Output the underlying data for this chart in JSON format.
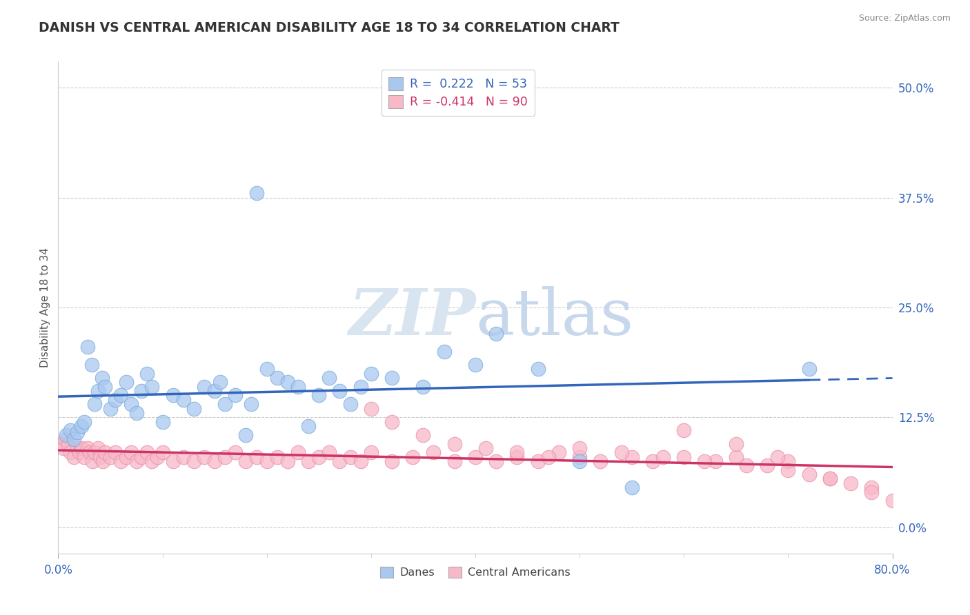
{
  "title": "DANISH VS CENTRAL AMERICAN DISABILITY AGE 18 TO 34 CORRELATION CHART",
  "source": "Source: ZipAtlas.com",
  "ylabel": "Disability Age 18 to 34",
  "ytick_values": [
    0.0,
    12.5,
    25.0,
    37.5,
    50.0
  ],
  "xlim": [
    0.0,
    80.0
  ],
  "ylim": [
    -3.0,
    53.0
  ],
  "blue_face_color": "#a8c8f0",
  "blue_edge_color": "#7aaad8",
  "pink_face_color": "#f8b8c8",
  "pink_edge_color": "#e890a8",
  "blue_line_color": "#3366bb",
  "pink_line_color": "#cc3366",
  "watermark_color": "#d8e4f0",
  "danes_label": "Danes",
  "central_label": "Central Americans",
  "legend_line1_r": "0.222",
  "legend_line1_n": "53",
  "legend_line2_r": "-0.414",
  "legend_line2_n": "90",
  "danes_x": [
    0.8,
    1.2,
    1.5,
    1.8,
    2.2,
    2.5,
    2.8,
    3.2,
    3.5,
    3.8,
    4.2,
    4.5,
    5.0,
    5.5,
    6.0,
    6.5,
    7.0,
    7.5,
    8.0,
    8.5,
    9.0,
    10.0,
    11.0,
    12.0,
    13.0,
    14.0,
    15.0,
    15.5,
    16.0,
    17.0,
    18.0,
    18.5,
    19.0,
    20.0,
    21.0,
    22.0,
    23.0,
    24.0,
    25.0,
    26.0,
    27.0,
    28.0,
    29.0,
    30.0,
    32.0,
    35.0,
    37.0,
    40.0,
    42.0,
    46.0,
    50.0,
    55.0,
    72.0
  ],
  "danes_y": [
    10.5,
    11.0,
    10.0,
    10.8,
    11.5,
    12.0,
    20.5,
    18.5,
    14.0,
    15.5,
    17.0,
    16.0,
    13.5,
    14.5,
    15.0,
    16.5,
    14.0,
    13.0,
    15.5,
    17.5,
    16.0,
    12.0,
    15.0,
    14.5,
    13.5,
    16.0,
    15.5,
    16.5,
    14.0,
    15.0,
    10.5,
    14.0,
    38.0,
    18.0,
    17.0,
    16.5,
    16.0,
    11.5,
    15.0,
    17.0,
    15.5,
    14.0,
    16.0,
    17.5,
    17.0,
    16.0,
    20.0,
    18.5,
    22.0,
    18.0,
    7.5,
    4.5,
    18.0
  ],
  "central_x": [
    0.3,
    0.5,
    0.7,
    1.0,
    1.2,
    1.5,
    1.8,
    2.0,
    2.3,
    2.5,
    2.8,
    3.0,
    3.3,
    3.5,
    3.8,
    4.0,
    4.3,
    4.5,
    5.0,
    5.5,
    6.0,
    6.5,
    7.0,
    7.5,
    8.0,
    8.5,
    9.0,
    9.5,
    10.0,
    11.0,
    12.0,
    13.0,
    14.0,
    15.0,
    16.0,
    17.0,
    18.0,
    19.0,
    20.0,
    21.0,
    22.0,
    23.0,
    24.0,
    25.0,
    26.0,
    27.0,
    28.0,
    29.0,
    30.0,
    32.0,
    34.0,
    36.0,
    38.0,
    40.0,
    42.0,
    44.0,
    46.0,
    48.0,
    50.0,
    52.0,
    55.0,
    57.0,
    60.0,
    63.0,
    65.0,
    68.0,
    70.0,
    72.0,
    74.0,
    76.0,
    78.0,
    80.0,
    30.0,
    32.0,
    35.0,
    38.0,
    41.0,
    44.0,
    47.0,
    50.0,
    54.0,
    58.0,
    62.0,
    66.0,
    70.0,
    74.0,
    78.0,
    60.0,
    65.0,
    69.0
  ],
  "central_y": [
    9.5,
    9.0,
    10.0,
    9.5,
    8.5,
    8.0,
    9.0,
    8.5,
    9.0,
    8.0,
    9.0,
    8.5,
    7.5,
    8.5,
    9.0,
    8.0,
    7.5,
    8.5,
    8.0,
    8.5,
    7.5,
    8.0,
    8.5,
    7.5,
    8.0,
    8.5,
    7.5,
    8.0,
    8.5,
    7.5,
    8.0,
    7.5,
    8.0,
    7.5,
    8.0,
    8.5,
    7.5,
    8.0,
    7.5,
    8.0,
    7.5,
    8.5,
    7.5,
    8.0,
    8.5,
    7.5,
    8.0,
    7.5,
    8.5,
    7.5,
    8.0,
    8.5,
    7.5,
    8.0,
    7.5,
    8.0,
    7.5,
    8.5,
    8.0,
    7.5,
    8.0,
    7.5,
    8.0,
    7.5,
    8.0,
    7.0,
    7.5,
    6.0,
    5.5,
    5.0,
    4.5,
    3.0,
    13.5,
    12.0,
    10.5,
    9.5,
    9.0,
    8.5,
    8.0,
    9.0,
    8.5,
    8.0,
    7.5,
    7.0,
    6.5,
    5.5,
    4.0,
    11.0,
    9.5,
    8.0
  ]
}
